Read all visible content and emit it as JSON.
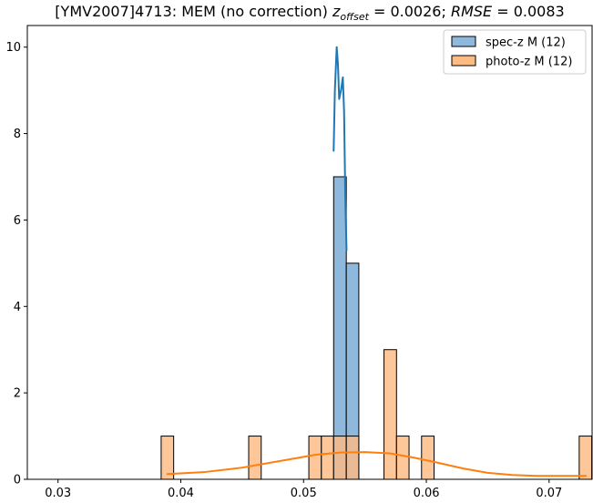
{
  "chart_data": {
    "type": "bar",
    "title_parts": {
      "prefix": "[YMV2007]4713: MEM (no correction) ",
      "z_sym": "z",
      "z_sub": "offset",
      "mid": " = 0.0026; ",
      "rmse_sym": "RMSE",
      "suffix": " = 0.0083"
    },
    "xlabel": "",
    "ylabel": "",
    "xlim": [
      0.0275,
      0.0735
    ],
    "ylim": [
      0,
      10.5
    ],
    "xticks": [
      "0.03",
      "0.04",
      "0.05",
      "0.06",
      "0.07"
    ],
    "yticks": [
      "0",
      "2",
      "4",
      "6",
      "8",
      "10"
    ],
    "grid": false,
    "legend_position": "top-right",
    "series": [
      {
        "name": "spec-z M (12)",
        "color": "#1f77b4",
        "fill": "#8fb9dc",
        "bins": [
          {
            "x0": 0.05245,
            "x1": 0.05348,
            "count": 7
          },
          {
            "x0": 0.05348,
            "x1": 0.0545,
            "count": 5
          }
        ],
        "kde": {
          "x": [
            0.05245,
            0.05255,
            0.0527,
            0.0528,
            0.0529,
            0.05305,
            0.0532,
            0.0533,
            0.0534,
            0.0535
          ],
          "y": [
            7.6,
            9.0,
            10.0,
            9.6,
            8.8,
            9.0,
            9.3,
            8.5,
            6.5,
            5.3
          ]
        }
      },
      {
        "name": "photo-z M (12)",
        "color": "#ff7f0e",
        "fill": "#fdbb84",
        "bins": [
          {
            "x0": 0.0384,
            "x1": 0.03942,
            "count": 1
          },
          {
            "x0": 0.04553,
            "x1": 0.04655,
            "count": 1
          },
          {
            "x0": 0.05043,
            "x1": 0.05145,
            "count": 1
          },
          {
            "x0": 0.05145,
            "x1": 0.05245,
            "count": 1
          },
          {
            "x0": 0.05245,
            "x1": 0.05348,
            "count": 1
          },
          {
            "x0": 0.05348,
            "x1": 0.0545,
            "count": 1
          },
          {
            "x0": 0.05655,
            "x1": 0.05757,
            "count": 3
          },
          {
            "x0": 0.05757,
            "x1": 0.05859,
            "count": 1
          },
          {
            "x0": 0.05961,
            "x1": 0.06063,
            "count": 1
          },
          {
            "x0": 0.07245,
            "x1": 0.07347,
            "count": 1
          }
        ],
        "kde": {
          "x": [
            0.0389,
            0.042,
            0.045,
            0.048,
            0.051,
            0.053,
            0.055,
            0.057,
            0.059,
            0.061,
            0.063,
            0.065,
            0.067,
            0.069,
            0.071,
            0.073
          ],
          "y": [
            0.12,
            0.17,
            0.27,
            0.42,
            0.57,
            0.62,
            0.63,
            0.6,
            0.5,
            0.38,
            0.25,
            0.15,
            0.1,
            0.08,
            0.08,
            0.08
          ]
        }
      }
    ]
  }
}
